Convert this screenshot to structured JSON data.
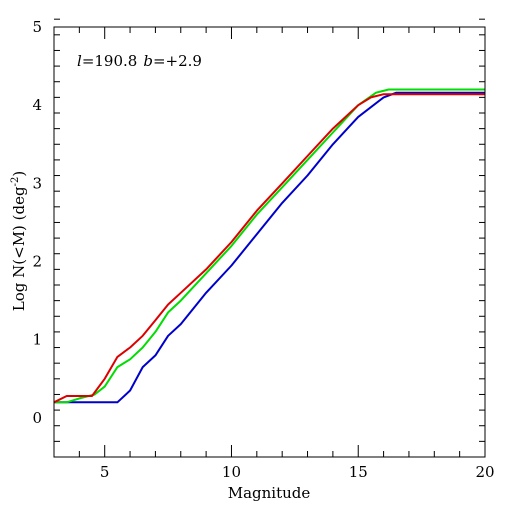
{
  "chart_data": {
    "type": "line",
    "annotation": {
      "l_symbol": "l",
      "l_value": "=190.8",
      "b_symbol": "b",
      "b_value": "=+2.9"
    },
    "xlabel": "Magnitude",
    "ylabel": {
      "prefix": "Log N(<M) (deg",
      "exponent": "-2",
      "suffix": ")"
    },
    "xlim": [
      3,
      20
    ],
    "ylim": [
      -0.5,
      5
    ],
    "x_ticks": [
      5,
      10,
      15,
      20
    ],
    "y_ticks": [
      0,
      1,
      2,
      3,
      4,
      5
    ],
    "x_minor_step": 1,
    "y_minor_step": 0.2,
    "grid": false,
    "series": [
      {
        "color": "#0000cc",
        "points": [
          [
            3.0,
            0.2
          ],
          [
            5.5,
            0.2
          ],
          [
            6.0,
            0.35
          ],
          [
            6.5,
            0.65
          ],
          [
            7.0,
            0.8
          ],
          [
            7.5,
            1.05
          ],
          [
            8.0,
            1.2
          ],
          [
            9.0,
            1.6
          ],
          [
            10.0,
            1.95
          ],
          [
            11.0,
            2.35
          ],
          [
            12.0,
            2.75
          ],
          [
            13.0,
            3.1
          ],
          [
            14.0,
            3.5
          ],
          [
            15.0,
            3.85
          ],
          [
            16.0,
            4.1
          ],
          [
            16.5,
            4.16
          ],
          [
            20.0,
            4.16
          ]
        ]
      },
      {
        "color": "#00dd00",
        "points": [
          [
            3.0,
            0.2
          ],
          [
            3.5,
            0.2
          ],
          [
            4.0,
            0.25
          ],
          [
            4.6,
            0.3
          ],
          [
            5.0,
            0.4
          ],
          [
            5.5,
            0.65
          ],
          [
            6.0,
            0.75
          ],
          [
            6.5,
            0.9
          ],
          [
            7.0,
            1.1
          ],
          [
            7.5,
            1.35
          ],
          [
            8.0,
            1.5
          ],
          [
            9.0,
            1.85
          ],
          [
            10.0,
            2.2
          ],
          [
            11.0,
            2.6
          ],
          [
            12.0,
            2.95
          ],
          [
            13.0,
            3.3
          ],
          [
            14.0,
            3.65
          ],
          [
            15.0,
            4.0
          ],
          [
            15.7,
            4.16
          ],
          [
            16.2,
            4.2
          ],
          [
            20.0,
            4.2
          ]
        ]
      },
      {
        "color": "#dd0000",
        "points": [
          [
            3.0,
            0.2
          ],
          [
            3.5,
            0.28
          ],
          [
            4.5,
            0.28
          ],
          [
            5.0,
            0.5
          ],
          [
            5.5,
            0.78
          ],
          [
            6.0,
            0.9
          ],
          [
            6.5,
            1.05
          ],
          [
            7.0,
            1.25
          ],
          [
            7.5,
            1.45
          ],
          [
            8.0,
            1.6
          ],
          [
            9.0,
            1.9
          ],
          [
            10.0,
            2.25
          ],
          [
            11.0,
            2.65
          ],
          [
            12.0,
            3.0
          ],
          [
            13.0,
            3.35
          ],
          [
            14.0,
            3.7
          ],
          [
            15.0,
            4.0
          ],
          [
            15.5,
            4.1
          ],
          [
            16.0,
            4.14
          ],
          [
            20.0,
            4.14
          ]
        ]
      }
    ]
  }
}
